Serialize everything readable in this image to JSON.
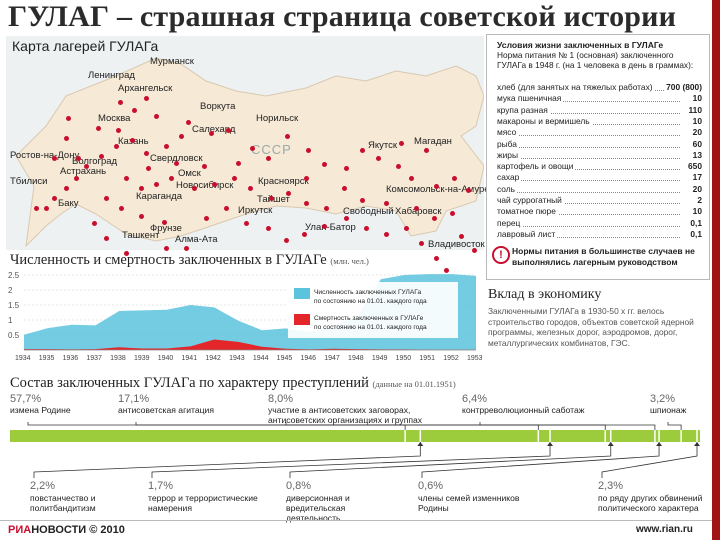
{
  "page": {
    "title": "ГУЛАГ – страшная страница советской истории"
  },
  "map": {
    "title": "Карта лагерей ГУЛАГа",
    "country_label": "СССР",
    "cities": [
      "Мурманск",
      "Ленинград",
      "Архангельск",
      "Москва",
      "Воркута",
      "Норильск",
      "Салехард",
      "Казань",
      "Свердловск",
      "Ростов-на-Дону",
      "Волгоград",
      "Астрахань",
      "Тбилиси",
      "Баку",
      "Омск",
      "Новосибирск",
      "Караганда",
      "Ташкент",
      "Фрунзе",
      "Алма-Ата",
      "Красноярск",
      "Тайшет",
      "Иркутск",
      "Улан-Батор",
      "Свободный",
      "Хабаровск",
      "Комсомольск-на-Амуре",
      "Якутск",
      "Магадан",
      "Владивосток"
    ]
  },
  "rations": {
    "heading_bold": "Условия жизни заключенных в ГУЛАГе",
    "heading_text": "Норма питания № 1 (основная) заключенного ГУЛАГа в 1948 г. (на 1 человека в день в граммах):",
    "items": [
      {
        "name": "хлеб (для занятых на тяжелых работах)",
        "value": "700 (800)"
      },
      {
        "name": "мука пшеничная",
        "value": "10"
      },
      {
        "name": "крупа разная",
        "value": "110"
      },
      {
        "name": "макароны и вермишель",
        "value": "10"
      },
      {
        "name": "мясо",
        "value": "20"
      },
      {
        "name": "рыба",
        "value": "60"
      },
      {
        "name": "жиры",
        "value": "13"
      },
      {
        "name": "картофель и овощи",
        "value": "650"
      },
      {
        "name": "сахар",
        "value": "17"
      },
      {
        "name": "соль",
        "value": "20"
      },
      {
        "name": "чай суррогатный",
        "value": "2"
      },
      {
        "name": "томатное пюре",
        "value": "10"
      },
      {
        "name": "перец",
        "value": "0,1"
      },
      {
        "name": "лавровый лист",
        "value": "0,1"
      }
    ],
    "note": "Нормы питания в большинстве случаев не выполнялись лагерным руководством",
    "note_icon": "exclamation-icon"
  },
  "prisoners_chart": {
    "title": "Численность и смертность заключенных в ГУЛАГе",
    "unit": "(млн. чел.)"
  },
  "economy": {
    "title": "Вклад в экономику",
    "text": "Заключенными ГУЛАГа в 1930-50 х гг. велось строительство городов, объектов советской ядерной программы, железных дорог, аэродромов, дорог, металлургических комбинатов, ГЭС."
  },
  "composition": {
    "title": "Состав заключенных ГУЛАГа по характеру преступлений",
    "unit": "(данные на 01.01.1951)"
  },
  "footer": {
    "logo_ria": "РИА",
    "logo_rest": "НОВОСТИ © 2010",
    "site": "www.rian.ru"
  },
  "colors": {
    "accent_red": "#c8102e",
    "bar_green": "#9ccc3c",
    "area_blue": "#5bc3dc",
    "map_bg": "#eef1f2"
  },
  "chart_data": [
    {
      "type": "area",
      "x": [
        "1934",
        "1935",
        "1936",
        "1937",
        "1938",
        "1939",
        "1940",
        "1941",
        "1942",
        "1943",
        "1944",
        "1945",
        "1946",
        "1947",
        "1948",
        "1949",
        "1950",
        "1951",
        "1952",
        "1953"
      ],
      "series": [
        {
          "name": "Численность заключенных ГУЛАГа по состоянию на 01.01. каждого года",
          "color": "#5bc3dc",
          "values": [
            0.51,
            0.73,
            0.84,
            0.82,
            1.3,
            1.32,
            1.34,
            1.5,
            1.42,
            0.98,
            0.66,
            0.72,
            0.6,
            0.81,
            1.11,
            2.36,
            2.5,
            2.53,
            2.53,
            2.47
          ]
        },
        {
          "name": "Смертность заключенных в ГУЛАГе по состоянию на 01.01. каждого года",
          "color": "#e3262a",
          "values": [
            0.03,
            0.03,
            0.02,
            0.03,
            0.09,
            0.05,
            0.05,
            0.12,
            0.35,
            0.27,
            0.11,
            0.04,
            0.02,
            0.04,
            0.03,
            0.02,
            0.02,
            0.01,
            0.01,
            0.01
          ]
        }
      ],
      "y_ticks": [
        "0.5",
        "1",
        "1.5",
        "2",
        "2.5"
      ],
      "x_labels": [
        "1934",
        "1935",
        "1936",
        "1937",
        "1938",
        "1939",
        "1940",
        "1941",
        "1942",
        "1943",
        "1944",
        "1945",
        "1946",
        "1947",
        "1948",
        "1949",
        "1950",
        "1951",
        "1952",
        "1953"
      ],
      "ylim": [
        0,
        2.6
      ],
      "grid": true,
      "legend": "center"
    },
    {
      "type": "bar",
      "title": "Состав заключенных ГУЛАГа по характеру преступлений",
      "orientation": "horizontal-stacked",
      "categories": [
        {
          "label": "измена Родине",
          "percent": "57,7%",
          "value": 57.7,
          "position": "top"
        },
        {
          "label": "повстанчество и политбандитизм",
          "percent": "2,2%",
          "value": 2.2,
          "position": "bottom"
        },
        {
          "label": "антисоветская агитация",
          "percent": "17,1%",
          "value": 17.1,
          "position": "top"
        },
        {
          "label": "террор и террористические намерения",
          "percent": "1,7%",
          "value": 1.7,
          "position": "bottom"
        },
        {
          "label": "участие в антисоветских заговорах, антисоветских организациях и группах",
          "percent": "8,0%",
          "value": 8.0,
          "position": "top"
        },
        {
          "label": "диверсионная и вредительская деятельность",
          "percent": "0,8%",
          "value": 0.8,
          "position": "bottom"
        },
        {
          "label": "контрреволюционный саботаж",
          "percent": "6,4%",
          "value": 6.4,
          "position": "top"
        },
        {
          "label": "члены семей изменников Родины",
          "percent": "0,6%",
          "value": 0.6,
          "position": "bottom"
        },
        {
          "label": "шпионаж",
          "percent": "3,2%",
          "value": 3.2,
          "position": "top"
        },
        {
          "label": "по ряду других обвинений политического характера",
          "percent": "2,3%",
          "value": 2.3,
          "position": "bottom"
        }
      ]
    }
  ]
}
